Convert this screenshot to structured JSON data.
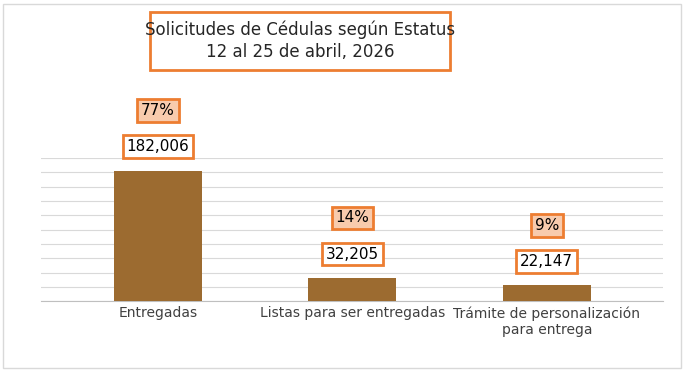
{
  "chart_data": {
    "type": "bar",
    "title": "Solicitudes de Cédulas según Estatus",
    "subtitle": "12 al 25 de abril, 2026",
    "categories": [
      "Entregadas",
      "Listas para ser entregadas",
      "Trámite de personalización para entrega"
    ],
    "values": [
      182006,
      32205,
      22147
    ],
    "value_labels": [
      "182,006",
      "32,205",
      "22,147"
    ],
    "share_labels": [
      "77%",
      "14%",
      "9%"
    ],
    "color": "#9c6b30",
    "ylim": [
      0,
      200000
    ],
    "yticks": [
      0,
      20000,
      40000,
      60000,
      80000,
      100000,
      120000,
      140000,
      160000,
      180000,
      200000
    ],
    "grid": true,
    "data_labels": true,
    "tick_labels": "x"
  }
}
